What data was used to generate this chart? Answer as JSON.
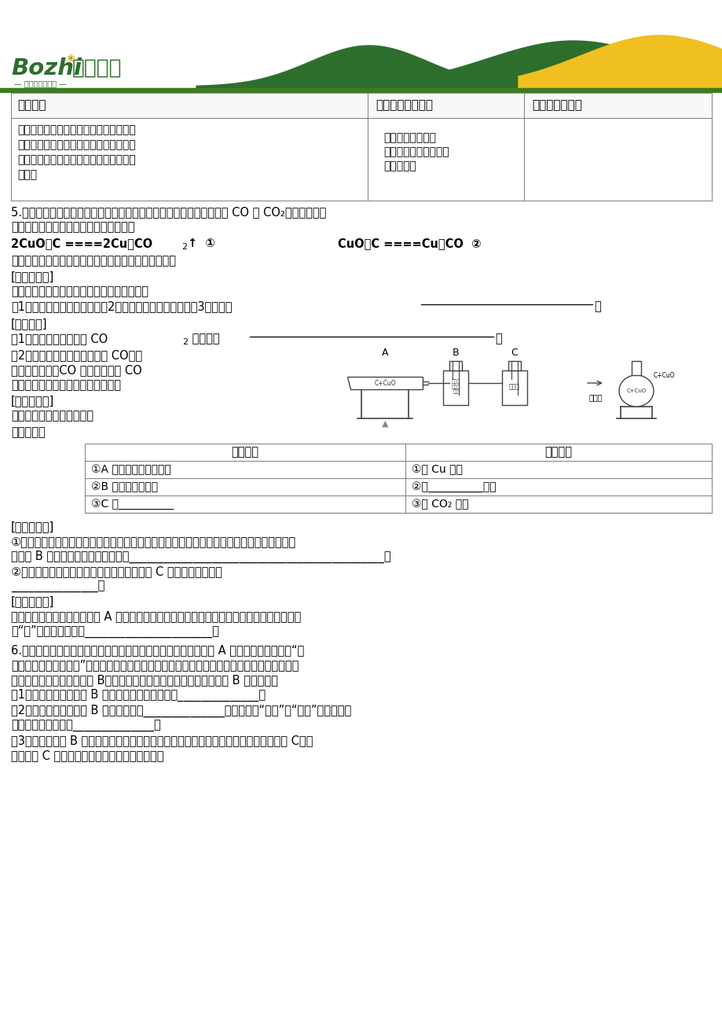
{
  "bg_color": "#ffffff",
  "header_green": "#2d6e2d",
  "header_yellow": "#f0c020",
  "header_bar_color": "#3a7d1e",
  "text_color": "#000000",
  "line_color": "#888888",
  "table_border": "#999999",
  "subtitle": "科学教育新体验",
  "logo_latin": "Bozhi",
  "logo_chinese": "博智教育",
  "table_headers": [
    "实验方法",
    "可能观察到的现象",
    "相应结果或结论"
  ],
  "t1c1_lines": [
    "取两支试管，分别加入相同质量的氮氧化",
    "镁和相同质量的热水振荡，各滴加数滴酚",
    "酮试液。一支保持温度不变，另一支自然",
    "冷却。"
  ],
  "t1c2_lines": [
    "保持温度不变的红",
    "色不消失，自然冷却的",
    "红色消失。"
  ],
  "s5_l1": "5.小杰和小敬学习了碳单质的化学性质后，知道碳与氧气反应能够生成 CO 或 CO₂。于是两人联",
  "s5_l2": "想到木灰粉与氧化铜发生的反应可能有：",
  "eq_left": "2CuO＋C ====2Cu＋CO",
  "eq_left_sub": "2",
  "eq_left_rest": "↑  ①",
  "eq_right": "CuO＋C ====Cu＋CO  ②",
  "verify": "他们想来验证自己的想法，请你同他们一起进行探究：",
  "guess_hdr": "[猜想与假设]",
  "guess_l1": "木灰粉与氧化铜反应生成的产物有三种可能：",
  "guess_l2a": "（1）产物是铜和一氧化碳；（2）产物是铜和二氧化碳；（3）产物是",
  "guess_blank_end": "。",
  "design_hdr": "[设计方案]",
  "design1a": "（1）检验产物中是否有 CO",
  "design1_sub": "2",
  "design1b": " 的方法是",
  "design2_l1": "（2）如何检验产物中是否存在 CO，两",
  "design2_l2": "人查找了资料：CO 的特征反应是 CO",
  "design2_l3": "能使某种氯化钒的黄色混合液变蓝。",
  "exp_concl_hdr": "[实验与结论]",
  "exp_concl_l1": "设计的实验装置（见右图）",
  "exp_report": "实验报告：",
  "exp_tbl_h1": "实验现象",
  "exp_tbl_h2": "实验结论",
  "exp_rows": [
    [
      "①A 中固体由黑色变红色",
      "①有 Cu 生成"
    ],
    [
      "②B 中黄色试纸变蓝",
      "②有__________生成"
    ],
    [
      "③C 中__________",
      "③有 CO₂ 生成"
    ]
  ],
  "reflect_hdr": "[反思与评价]",
  "reflect_l1": "①实验结束时，为防止铜被氧化，必须先停止加热，待铜冷却后再将试管口的胶塞取下，因此",
  "reflect_l2": "若没有 B 安全瓶，可能导致的后果是____________________________________________。",
  "reflect_l3": "②根据实验结论，从环保角度考虑，上述装置 C 后应添加的装置是",
  "reflect_l4": "_______________。",
  "expand_hdr": "[拓展与交流]",
  "expand_l1": "如果用右图装置代替左图中的 A 装置，这样既可以排尽试管中的空气，又能将反应的气体产物",
  "expand_l2": "都“赶”出来，该气体是______________________。",
  "s6_l1": "6.思奇同学在妈妈买回的某食品包装内发现有一包白色颗粒状固体 A 的小纸袋，上面写着“生",
  "s6_l2": "石灰干燥剂，请勿食用”。思奇同学随手将小纸袋放在窗台上，过一段时间后发现纸袋内的白色",
  "s6_l3": "颗粒粘在一起成为块状固体 B。思奇同学请你和同学们一起对块状固体 B 进行探究。",
  "g6_l1": "（1）猜想一：块状固体 B 中除氧化钙外，还可能有______________；",
  "g6_l2": "（2）猜想二：块状固体 B 溶于水可能有______________现象，（填“放热”或“吸热”）。请你设",
  "g6_l2b": "计实验验证这一猜想______________；",
  "g6_l3": "（3）取块状固体 B 加入盛有一定量水的试管内，振荡、静置、过滤，得到少量白色固体 C。就",
  "g6_l3b": "白色固体 C 同学们展开了热烈讨价，一起猜想。"
}
